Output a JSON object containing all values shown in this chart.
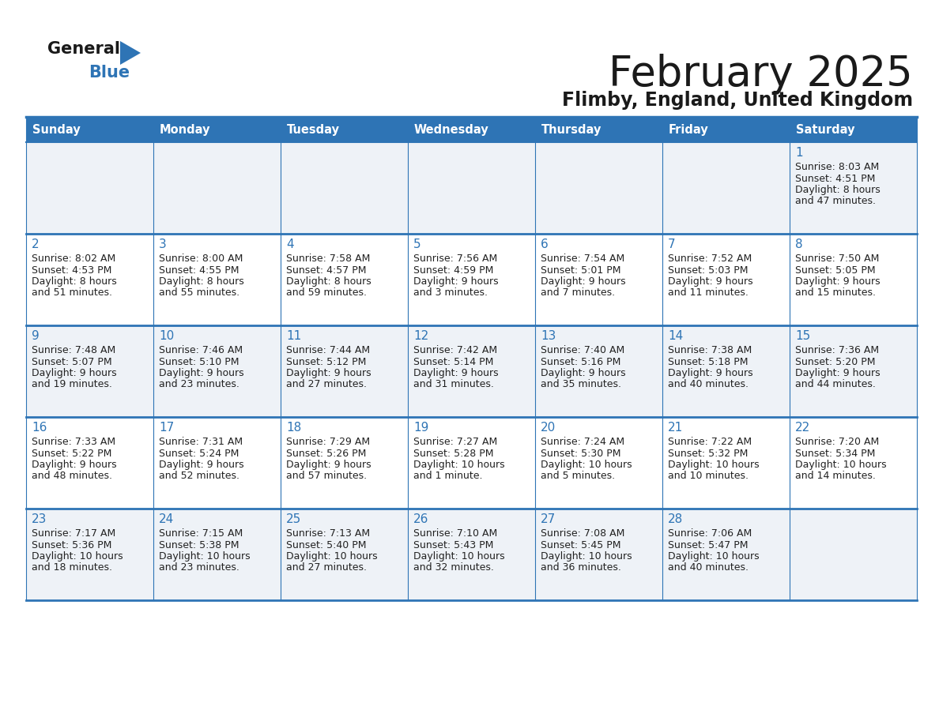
{
  "title": "February 2025",
  "subtitle": "Flimby, England, United Kingdom",
  "days_of_week": [
    "Sunday",
    "Monday",
    "Tuesday",
    "Wednesday",
    "Thursday",
    "Friday",
    "Saturday"
  ],
  "header_bg": "#2e74b5",
  "header_text": "#ffffff",
  "row_bg_odd": "#eef2f7",
  "row_bg_even": "#ffffff",
  "cell_border": "#2e74b5",
  "day_number_color": "#2e74b5",
  "info_color": "#222222",
  "bg_color": "#ffffff",
  "calendar_data": [
    [
      null,
      null,
      null,
      null,
      null,
      null,
      {
        "day": "1",
        "sunrise": "8:03 AM",
        "sunset": "4:51 PM",
        "daylight_line1": "Daylight: 8 hours",
        "daylight_line2": "and 47 minutes."
      }
    ],
    [
      {
        "day": "2",
        "sunrise": "8:02 AM",
        "sunset": "4:53 PM",
        "daylight_line1": "Daylight: 8 hours",
        "daylight_line2": "and 51 minutes."
      },
      {
        "day": "3",
        "sunrise": "8:00 AM",
        "sunset": "4:55 PM",
        "daylight_line1": "Daylight: 8 hours",
        "daylight_line2": "and 55 minutes."
      },
      {
        "day": "4",
        "sunrise": "7:58 AM",
        "sunset": "4:57 PM",
        "daylight_line1": "Daylight: 8 hours",
        "daylight_line2": "and 59 minutes."
      },
      {
        "day": "5",
        "sunrise": "7:56 AM",
        "sunset": "4:59 PM",
        "daylight_line1": "Daylight: 9 hours",
        "daylight_line2": "and 3 minutes."
      },
      {
        "day": "6",
        "sunrise": "7:54 AM",
        "sunset": "5:01 PM",
        "daylight_line1": "Daylight: 9 hours",
        "daylight_line2": "and 7 minutes."
      },
      {
        "day": "7",
        "sunrise": "7:52 AM",
        "sunset": "5:03 PM",
        "daylight_line1": "Daylight: 9 hours",
        "daylight_line2": "and 11 minutes."
      },
      {
        "day": "8",
        "sunrise": "7:50 AM",
        "sunset": "5:05 PM",
        "daylight_line1": "Daylight: 9 hours",
        "daylight_line2": "and 15 minutes."
      }
    ],
    [
      {
        "day": "9",
        "sunrise": "7:48 AM",
        "sunset": "5:07 PM",
        "daylight_line1": "Daylight: 9 hours",
        "daylight_line2": "and 19 minutes."
      },
      {
        "day": "10",
        "sunrise": "7:46 AM",
        "sunset": "5:10 PM",
        "daylight_line1": "Daylight: 9 hours",
        "daylight_line2": "and 23 minutes."
      },
      {
        "day": "11",
        "sunrise": "7:44 AM",
        "sunset": "5:12 PM",
        "daylight_line1": "Daylight: 9 hours",
        "daylight_line2": "and 27 minutes."
      },
      {
        "day": "12",
        "sunrise": "7:42 AM",
        "sunset": "5:14 PM",
        "daylight_line1": "Daylight: 9 hours",
        "daylight_line2": "and 31 minutes."
      },
      {
        "day": "13",
        "sunrise": "7:40 AM",
        "sunset": "5:16 PM",
        "daylight_line1": "Daylight: 9 hours",
        "daylight_line2": "and 35 minutes."
      },
      {
        "day": "14",
        "sunrise": "7:38 AM",
        "sunset": "5:18 PM",
        "daylight_line1": "Daylight: 9 hours",
        "daylight_line2": "and 40 minutes."
      },
      {
        "day": "15",
        "sunrise": "7:36 AM",
        "sunset": "5:20 PM",
        "daylight_line1": "Daylight: 9 hours",
        "daylight_line2": "and 44 minutes."
      }
    ],
    [
      {
        "day": "16",
        "sunrise": "7:33 AM",
        "sunset": "5:22 PM",
        "daylight_line1": "Daylight: 9 hours",
        "daylight_line2": "and 48 minutes."
      },
      {
        "day": "17",
        "sunrise": "7:31 AM",
        "sunset": "5:24 PM",
        "daylight_line1": "Daylight: 9 hours",
        "daylight_line2": "and 52 minutes."
      },
      {
        "day": "18",
        "sunrise": "7:29 AM",
        "sunset": "5:26 PM",
        "daylight_line1": "Daylight: 9 hours",
        "daylight_line2": "and 57 minutes."
      },
      {
        "day": "19",
        "sunrise": "7:27 AM",
        "sunset": "5:28 PM",
        "daylight_line1": "Daylight: 10 hours",
        "daylight_line2": "and 1 minute."
      },
      {
        "day": "20",
        "sunrise": "7:24 AM",
        "sunset": "5:30 PM",
        "daylight_line1": "Daylight: 10 hours",
        "daylight_line2": "and 5 minutes."
      },
      {
        "day": "21",
        "sunrise": "7:22 AM",
        "sunset": "5:32 PM",
        "daylight_line1": "Daylight: 10 hours",
        "daylight_line2": "and 10 minutes."
      },
      {
        "day": "22",
        "sunrise": "7:20 AM",
        "sunset": "5:34 PM",
        "daylight_line1": "Daylight: 10 hours",
        "daylight_line2": "and 14 minutes."
      }
    ],
    [
      {
        "day": "23",
        "sunrise": "7:17 AM",
        "sunset": "5:36 PM",
        "daylight_line1": "Daylight: 10 hours",
        "daylight_line2": "and 18 minutes."
      },
      {
        "day": "24",
        "sunrise": "7:15 AM",
        "sunset": "5:38 PM",
        "daylight_line1": "Daylight: 10 hours",
        "daylight_line2": "and 23 minutes."
      },
      {
        "day": "25",
        "sunrise": "7:13 AM",
        "sunset": "5:40 PM",
        "daylight_line1": "Daylight: 10 hours",
        "daylight_line2": "and 27 minutes."
      },
      {
        "day": "26",
        "sunrise": "7:10 AM",
        "sunset": "5:43 PM",
        "daylight_line1": "Daylight: 10 hours",
        "daylight_line2": "and 32 minutes."
      },
      {
        "day": "27",
        "sunrise": "7:08 AM",
        "sunset": "5:45 PM",
        "daylight_line1": "Daylight: 10 hours",
        "daylight_line2": "and 36 minutes."
      },
      {
        "day": "28",
        "sunrise": "7:06 AM",
        "sunset": "5:47 PM",
        "daylight_line1": "Daylight: 10 hours",
        "daylight_line2": "and 40 minutes."
      },
      null
    ]
  ]
}
